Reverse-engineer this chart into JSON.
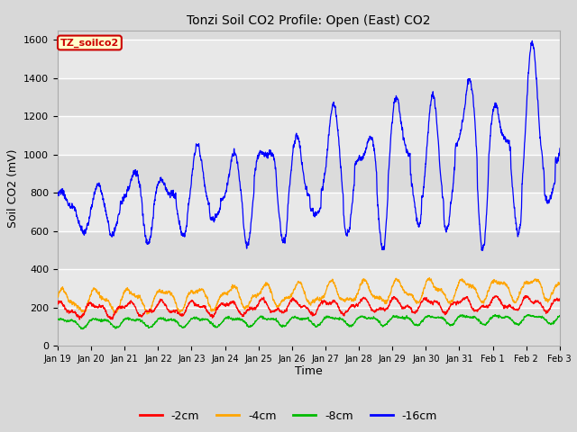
{
  "title": "Tonzi Soil CO2 Profile: Open (East) CO2",
  "ylabel": "Soil CO2 (mV)",
  "xlabel": "Time",
  "legend_label": "TZ_soilco2",
  "legend_entries": [
    "-2cm",
    "-4cm",
    "-8cm",
    "-16cm"
  ],
  "legend_colors": [
    "#ff0000",
    "#ffa500",
    "#00bb00",
    "#0000ff"
  ],
  "ylim": [
    0,
    1650
  ],
  "yticks": [
    0,
    200,
    400,
    600,
    800,
    1000,
    1200,
    1400,
    1600
  ],
  "background_color": "#d8d8d8",
  "plot_bg_color": "#e8e8e8",
  "grid_color": "#ffffff",
  "figwidth": 6.4,
  "figheight": 4.8,
  "dpi": 100
}
